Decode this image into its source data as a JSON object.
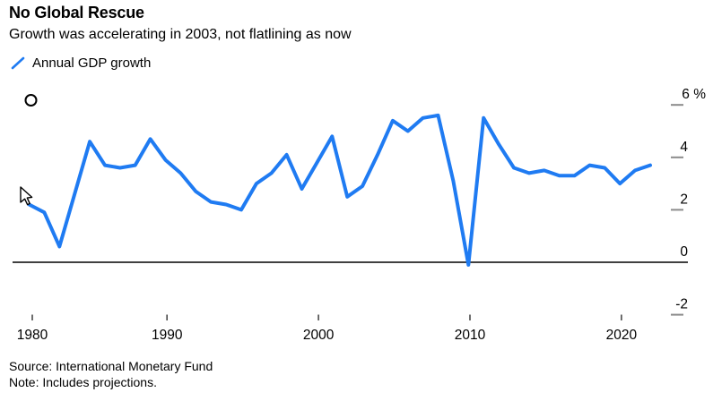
{
  "header": {
    "title": "No Global Rescue",
    "subtitle": "Growth was accelerating in 2003, not flatlining as now"
  },
  "legend": {
    "label": "Annual GDP growth",
    "line_color": "#1f7bf2"
  },
  "footer": {
    "source": "Source: International Monetary Fund",
    "note": "Note: Includes projections."
  },
  "chart_data": {
    "type": "line",
    "title": "No Global Rescue",
    "subtitle": "Growth was accelerating in 2003, not flatlining as now",
    "xlabel": "",
    "ylabel": "%",
    "xlim": [
      1979,
      2024
    ],
    "ylim": [
      -2.9,
      6.5
    ],
    "grid": false,
    "legend_position": "top-left",
    "line_color": "#1f7bf2",
    "axis_line_at_zero": true,
    "x_ticks": [
      1980,
      1990,
      2000,
      2010,
      2020
    ],
    "x_tick_labels": [
      "1980",
      "1990",
      "2000",
      "2010",
      "2020"
    ],
    "y_ticks": [
      6,
      4,
      2,
      0,
      -2
    ],
    "y_tick_labels": [
      "6 %",
      "4",
      "2",
      "0",
      "-2"
    ],
    "series": [
      {
        "name": "Annual GDP growth",
        "x": [
          1980,
          1981,
          1982,
          1983,
          1984,
          1985,
          1986,
          1987,
          1988,
          1989,
          1990,
          1991,
          1992,
          1993,
          1994,
          1995,
          1996,
          1997,
          1998,
          1999,
          2000,
          2001,
          2002,
          2003,
          2004,
          2005,
          2006,
          2007,
          2008,
          2009,
          2010,
          2011,
          2012,
          2013,
          2014,
          2015,
          2016,
          2017,
          2018,
          2019,
          2020,
          2021
        ],
        "values": [
          2.2,
          1.9,
          0.6,
          2.6,
          4.6,
          3.7,
          3.6,
          3.7,
          4.7,
          3.9,
          3.4,
          2.7,
          2.3,
          2.2,
          2.0,
          3.0,
          3.4,
          4.1,
          2.8,
          3.8,
          4.8,
          2.5,
          2.9,
          4.1,
          5.4,
          5.0,
          5.5,
          5.6,
          3.1,
          -0.1,
          5.5,
          4.5,
          3.6,
          3.4,
          3.5,
          3.3,
          3.3,
          3.7,
          3.6,
          3.0,
          3.5,
          3.7
        ]
      }
    ]
  }
}
